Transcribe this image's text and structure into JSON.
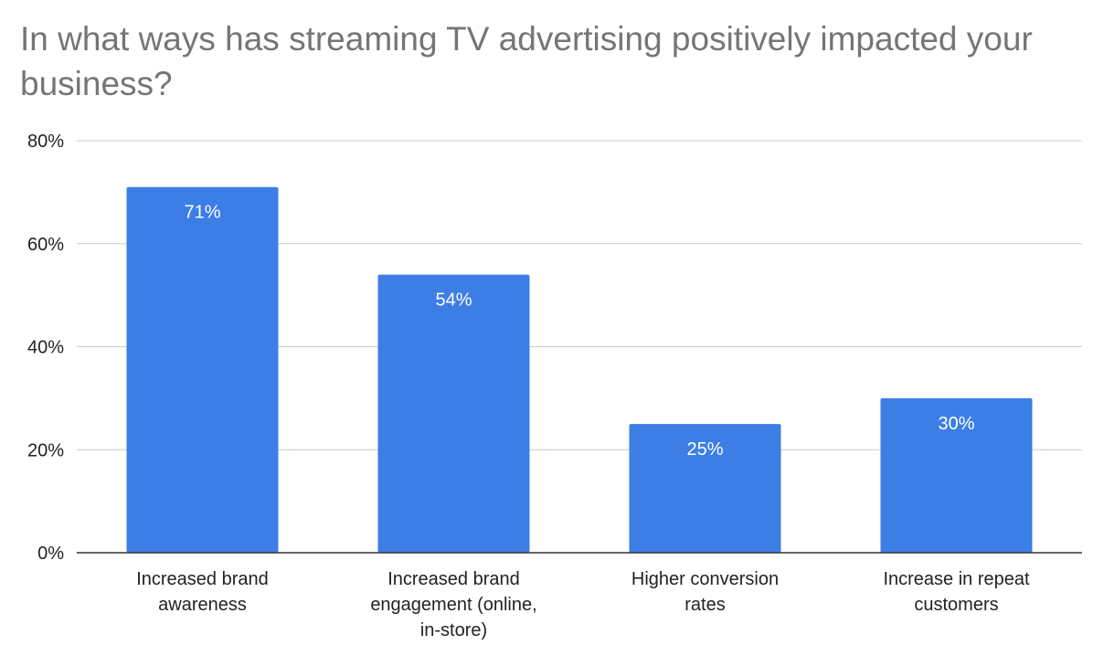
{
  "chart_data": {
    "type": "bar",
    "title": "In what ways has streaming TV advertising positively impacted your business?",
    "categories": [
      "Increased brand awareness",
      "Increased brand engagement (online, in-store)",
      "Higher conversion rates",
      "Increase in repeat customers"
    ],
    "category_lines": [
      [
        "Increased brand",
        "awareness"
      ],
      [
        "Increased brand",
        "engagement (online,",
        "in-store)"
      ],
      [
        "Higher conversion",
        "rates"
      ],
      [
        "Increase in repeat",
        "customers"
      ]
    ],
    "values": [
      71,
      54,
      25,
      30
    ],
    "data_labels": [
      "71%",
      "54%",
      "25%",
      "30%"
    ],
    "ylim": [
      0,
      80
    ],
    "yticks": [
      0,
      20,
      40,
      60,
      80
    ],
    "ytick_labels": [
      "0%",
      "20%",
      "40%",
      "60%",
      "80%"
    ],
    "xlabel": "",
    "ylabel": "",
    "grid": true,
    "legend": "none",
    "bar_color": "#3d7ee6",
    "gridline_color": "#cccccc",
    "axis_color": "#333333",
    "title_color": "#757575"
  }
}
